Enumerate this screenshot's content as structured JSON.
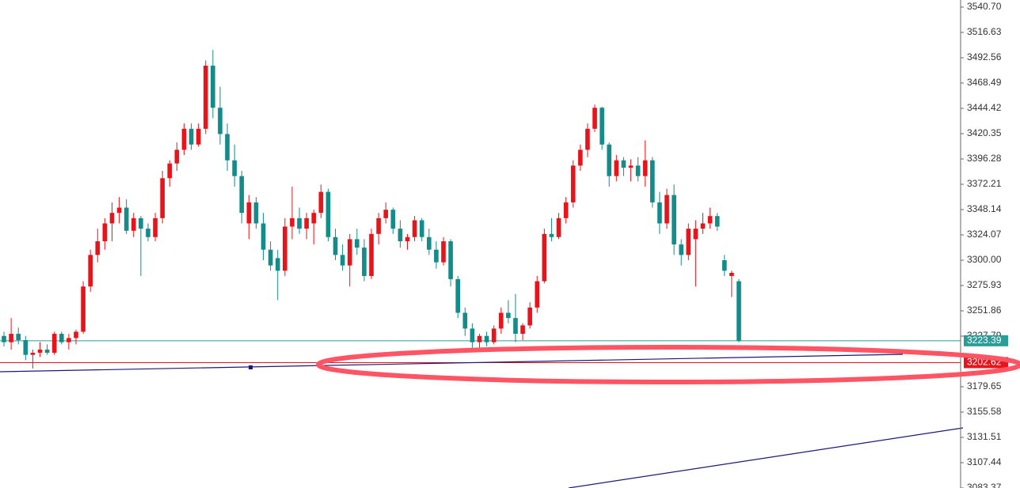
{
  "chart_data": {
    "type": "candlestick",
    "up_color": "#e8141c",
    "down_color": "#138c8a",
    "ylim": [
      3083.37,
      3547.47
    ],
    "yticks": [
      {
        "value": 3540.7,
        "label": "3540.70"
      },
      3516.63,
      3492.56,
      3468.49,
      3444.42,
      3420.35,
      3396.28,
      3372.21,
      3348.14,
      3324.07,
      {
        "value": 3300.0,
        "label": "3300.00"
      },
      3275.93,
      3251.86,
      3227.79,
      3179.65,
      3155.58,
      3131.51,
      3107.44,
      3083.37
    ],
    "current_price": 3223.39,
    "current_color": "#2a9d98",
    "level_price": 3202.62,
    "level_color": "#e8141c",
    "ohlc": [
      [
        3228,
        3232,
        3218,
        3222
      ],
      [
        3222,
        3245,
        3215,
        3230
      ],
      [
        3230,
        3236,
        3220,
        3224
      ],
      [
        3224,
        3228,
        3205,
        3210
      ],
      [
        3210,
        3215,
        3197,
        3212
      ],
      [
        3212,
        3222,
        3208,
        3215
      ],
      [
        3215,
        3220,
        3210,
        3212
      ],
      [
        3212,
        3232,
        3210,
        3230
      ],
      [
        3230,
        3232,
        3220,
        3222
      ],
      [
        3222,
        3230,
        3215,
        3226
      ],
      [
        3226,
        3234,
        3220,
        3232
      ],
      [
        3232,
        3280,
        3230,
        3275
      ],
      [
        3275,
        3310,
        3270,
        3305
      ],
      [
        3305,
        3330,
        3298,
        3318
      ],
      [
        3318,
        3340,
        3310,
        3335
      ],
      [
        3335,
        3355,
        3318,
        3345
      ],
      [
        3345,
        3360,
        3335,
        3350
      ],
      [
        3350,
        3358,
        3325,
        3328
      ],
      [
        3328,
        3345,
        3322,
        3340
      ],
      [
        3340,
        3342,
        3285,
        3330
      ],
      [
        3330,
        3335,
        3318,
        3322
      ],
      [
        3322,
        3345,
        3318,
        3340
      ],
      [
        3340,
        3385,
        3335,
        3378
      ],
      [
        3378,
        3395,
        3370,
        3392
      ],
      [
        3392,
        3412,
        3385,
        3405
      ],
      [
        3405,
        3430,
        3400,
        3425
      ],
      [
        3425,
        3430,
        3405,
        3410
      ],
      [
        3410,
        3430,
        3408,
        3425
      ],
      [
        3425,
        3490,
        3420,
        3485
      ],
      [
        3485,
        3500,
        3435,
        3445
      ],
      [
        3445,
        3465,
        3410,
        3420
      ],
      [
        3420,
        3430,
        3385,
        3395
      ],
      [
        3395,
        3410,
        3370,
        3380
      ],
      [
        3380,
        3385,
        3335,
        3345
      ],
      [
        3335,
        3362,
        3320,
        3355
      ],
      [
        3355,
        3360,
        3330,
        3335
      ],
      [
        3335,
        3345,
        3300,
        3310
      ],
      [
        3310,
        3318,
        3290,
        3295
      ],
      [
        3302,
        3310,
        3262,
        3290
      ],
      [
        3290,
        3340,
        3285,
        3332
      ],
      [
        3332,
        3370,
        3320,
        3340
      ],
      [
        3340,
        3350,
        3325,
        3330
      ],
      [
        3330,
        3345,
        3320,
        3340
      ],
      [
        3335,
        3348,
        3315,
        3345
      ],
      [
        3345,
        3372,
        3340,
        3365
      ],
      [
        3365,
        3368,
        3318,
        3322
      ],
      [
        3322,
        3330,
        3300,
        3305
      ],
      [
        3305,
        3315,
        3290,
        3295
      ],
      [
        3295,
        3325,
        3275,
        3320
      ],
      [
        3320,
        3330,
        3305,
        3312
      ],
      [
        3312,
        3320,
        3280,
        3285
      ],
      [
        3285,
        3330,
        3282,
        3325
      ],
      [
        3325,
        3345,
        3315,
        3340
      ],
      [
        3340,
        3355,
        3335,
        3348
      ],
      [
        3348,
        3350,
        3325,
        3330
      ],
      [
        3330,
        3338,
        3312,
        3318
      ],
      [
        3318,
        3325,
        3310,
        3322
      ],
      [
        3322,
        3342,
        3318,
        3338
      ],
      [
        3338,
        3340,
        3318,
        3322
      ],
      [
        3322,
        3330,
        3305,
        3310
      ],
      [
        3310,
        3318,
        3292,
        3298
      ],
      [
        3298,
        3322,
        3295,
        3318
      ],
      [
        3318,
        3320,
        3275,
        3282
      ],
      [
        3282,
        3285,
        3245,
        3250
      ],
      [
        3250,
        3255,
        3228,
        3235
      ],
      [
        3235,
        3240,
        3215,
        3222
      ],
      [
        3222,
        3230,
        3213,
        3228
      ],
      [
        3228,
        3232,
        3218,
        3222
      ],
      [
        3222,
        3238,
        3220,
        3235
      ],
      [
        3235,
        3255,
        3230,
        3250
      ],
      [
        3250,
        3262,
        3240,
        3245
      ],
      [
        3245,
        3268,
        3222,
        3230
      ],
      [
        3230,
        3240,
        3224,
        3238
      ],
      [
        3238,
        3260,
        3235,
        3255
      ],
      [
        3255,
        3285,
        3250,
        3280
      ],
      [
        3280,
        3330,
        3278,
        3325
      ],
      [
        3325,
        3340,
        3318,
        3322
      ],
      [
        3322,
        3345,
        3320,
        3340
      ],
      [
        3340,
        3360,
        3335,
        3355
      ],
      [
        3355,
        3395,
        3350,
        3390
      ],
      [
        3390,
        3410,
        3385,
        3405
      ],
      [
        3405,
        3430,
        3398,
        3425
      ],
      [
        3425,
        3448,
        3422,
        3445
      ],
      [
        3445,
        3446,
        3405,
        3410
      ],
      [
        3410,
        3412,
        3370,
        3380
      ],
      [
        3380,
        3400,
        3375,
        3395
      ],
      [
        3395,
        3398,
        3380,
        3388
      ],
      [
        3388,
        3396,
        3375,
        3390
      ],
      [
        3390,
        3398,
        3375,
        3380
      ],
      [
        3380,
        3414,
        3370,
        3395
      ],
      [
        3395,
        3398,
        3350,
        3355
      ],
      [
        3355,
        3365,
        3325,
        3335
      ],
      [
        3335,
        3368,
        3330,
        3362
      ],
      [
        3362,
        3372,
        3305,
        3315
      ],
      [
        3315,
        3320,
        3295,
        3305
      ],
      [
        3305,
        3335,
        3300,
        3330
      ],
      [
        3320,
        3338,
        3275,
        3330
      ],
      [
        3330,
        3345,
        3325,
        3335
      ],
      [
        3335,
        3350,
        3330,
        3342
      ],
      [
        3342,
        3345,
        3328,
        3332
      ],
      [
        3300,
        3305,
        3285,
        3290
      ],
      [
        3285,
        3290,
        3265,
        3288
      ],
      [
        3280,
        3282,
        3222,
        3223.39
      ]
    ]
  }
}
